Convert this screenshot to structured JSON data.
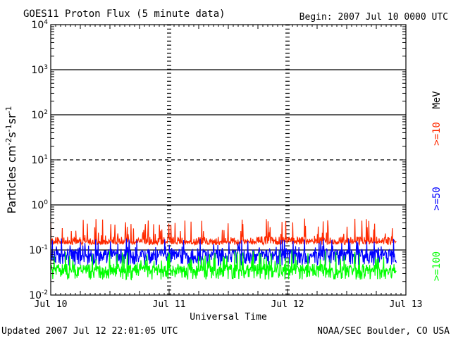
{
  "chart_data": {
    "type": "line",
    "title": "GOES11 Proton Flux (5 minute data)",
    "begin_label": "Begin: 2007 Jul 10 0000 UTC",
    "xlabel": "Universal Time",
    "ylabel": {
      "base": "Particles cm",
      "exp1": "-2",
      "mid1": "s",
      "exp2": "-1",
      "mid2": "sr",
      "exp3": "-1"
    },
    "y_scale": "log",
    "ylim": [
      0.01,
      10000
    ],
    "y_ticks": [
      {
        "value": 0.01,
        "base": "10",
        "exp": "-2"
      },
      {
        "value": 0.1,
        "base": "10",
        "exp": "-1"
      },
      {
        "value": 1,
        "base": "10",
        "exp": "0"
      },
      {
        "value": 10,
        "base": "10",
        "exp": "1"
      },
      {
        "value": 100,
        "base": "10",
        "exp": "2"
      },
      {
        "value": 1000,
        "base": "10",
        "exp": "3"
      },
      {
        "value": 10000,
        "base": "10",
        "exp": "4"
      }
    ],
    "x_ticks": [
      "Jul 10",
      "Jul 11",
      "Jul 12",
      "Jul 13"
    ],
    "xlim_days": [
      0,
      3
    ],
    "reference_lines": [
      {
        "value": 1000,
        "style": "solid"
      },
      {
        "value": 100,
        "style": "solid"
      },
      {
        "value": 10,
        "style": "dashed"
      },
      {
        "value": 1,
        "style": "solid"
      },
      {
        "value": 0.1,
        "style": "solid"
      }
    ],
    "units_label": "MeV",
    "series": [
      {
        "name": ">=10",
        "color": "#ff2a00",
        "baseline": 0.16,
        "low": 0.13,
        "high": 0.5
      },
      {
        "name": ">=50",
        "color": "#0000ff",
        "baseline": 0.085,
        "low": 0.045,
        "high": 0.18
      },
      {
        "name": ">=100",
        "color": "#00ff00",
        "baseline": 0.04,
        "low": 0.022,
        "high": 0.1
      }
    ]
  },
  "footer": {
    "updated": "Updated 2007 Jul 12 22:01:05 UTC",
    "source": "NOAA/SEC Boulder, CO USA"
  }
}
